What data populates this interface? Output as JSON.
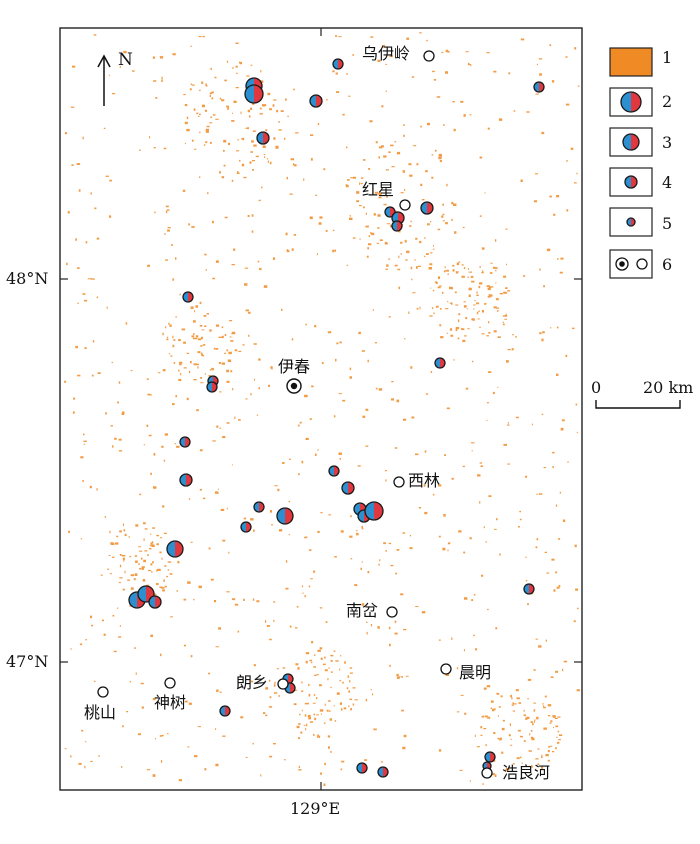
{
  "north_arrow": {
    "label": "N"
  },
  "lat_ticks": [
    "48°N",
    "47°N"
  ],
  "lon_ticks": [
    "129°E"
  ],
  "places": {
    "wuyiling": "乌伊岭",
    "hongxing": "红星",
    "yichun": "伊春",
    "xilin": "西林",
    "nancha": "南岔",
    "chenming": "晨明",
    "langxiang": "朗乡",
    "taoshan": "桃山",
    "shenshu": "神树",
    "haolianghe": "浩良河"
  },
  "legend": {
    "items": [
      "1",
      "2",
      "3",
      "4",
      "5",
      "6"
    ],
    "colors": {
      "forest": "#f08a24",
      "blue": "#2b8fd0",
      "red": "#e0383e",
      "outline": "#1a1a1a"
    }
  },
  "scale_bar": {
    "zero": "0",
    "dist": "20 km"
  }
}
